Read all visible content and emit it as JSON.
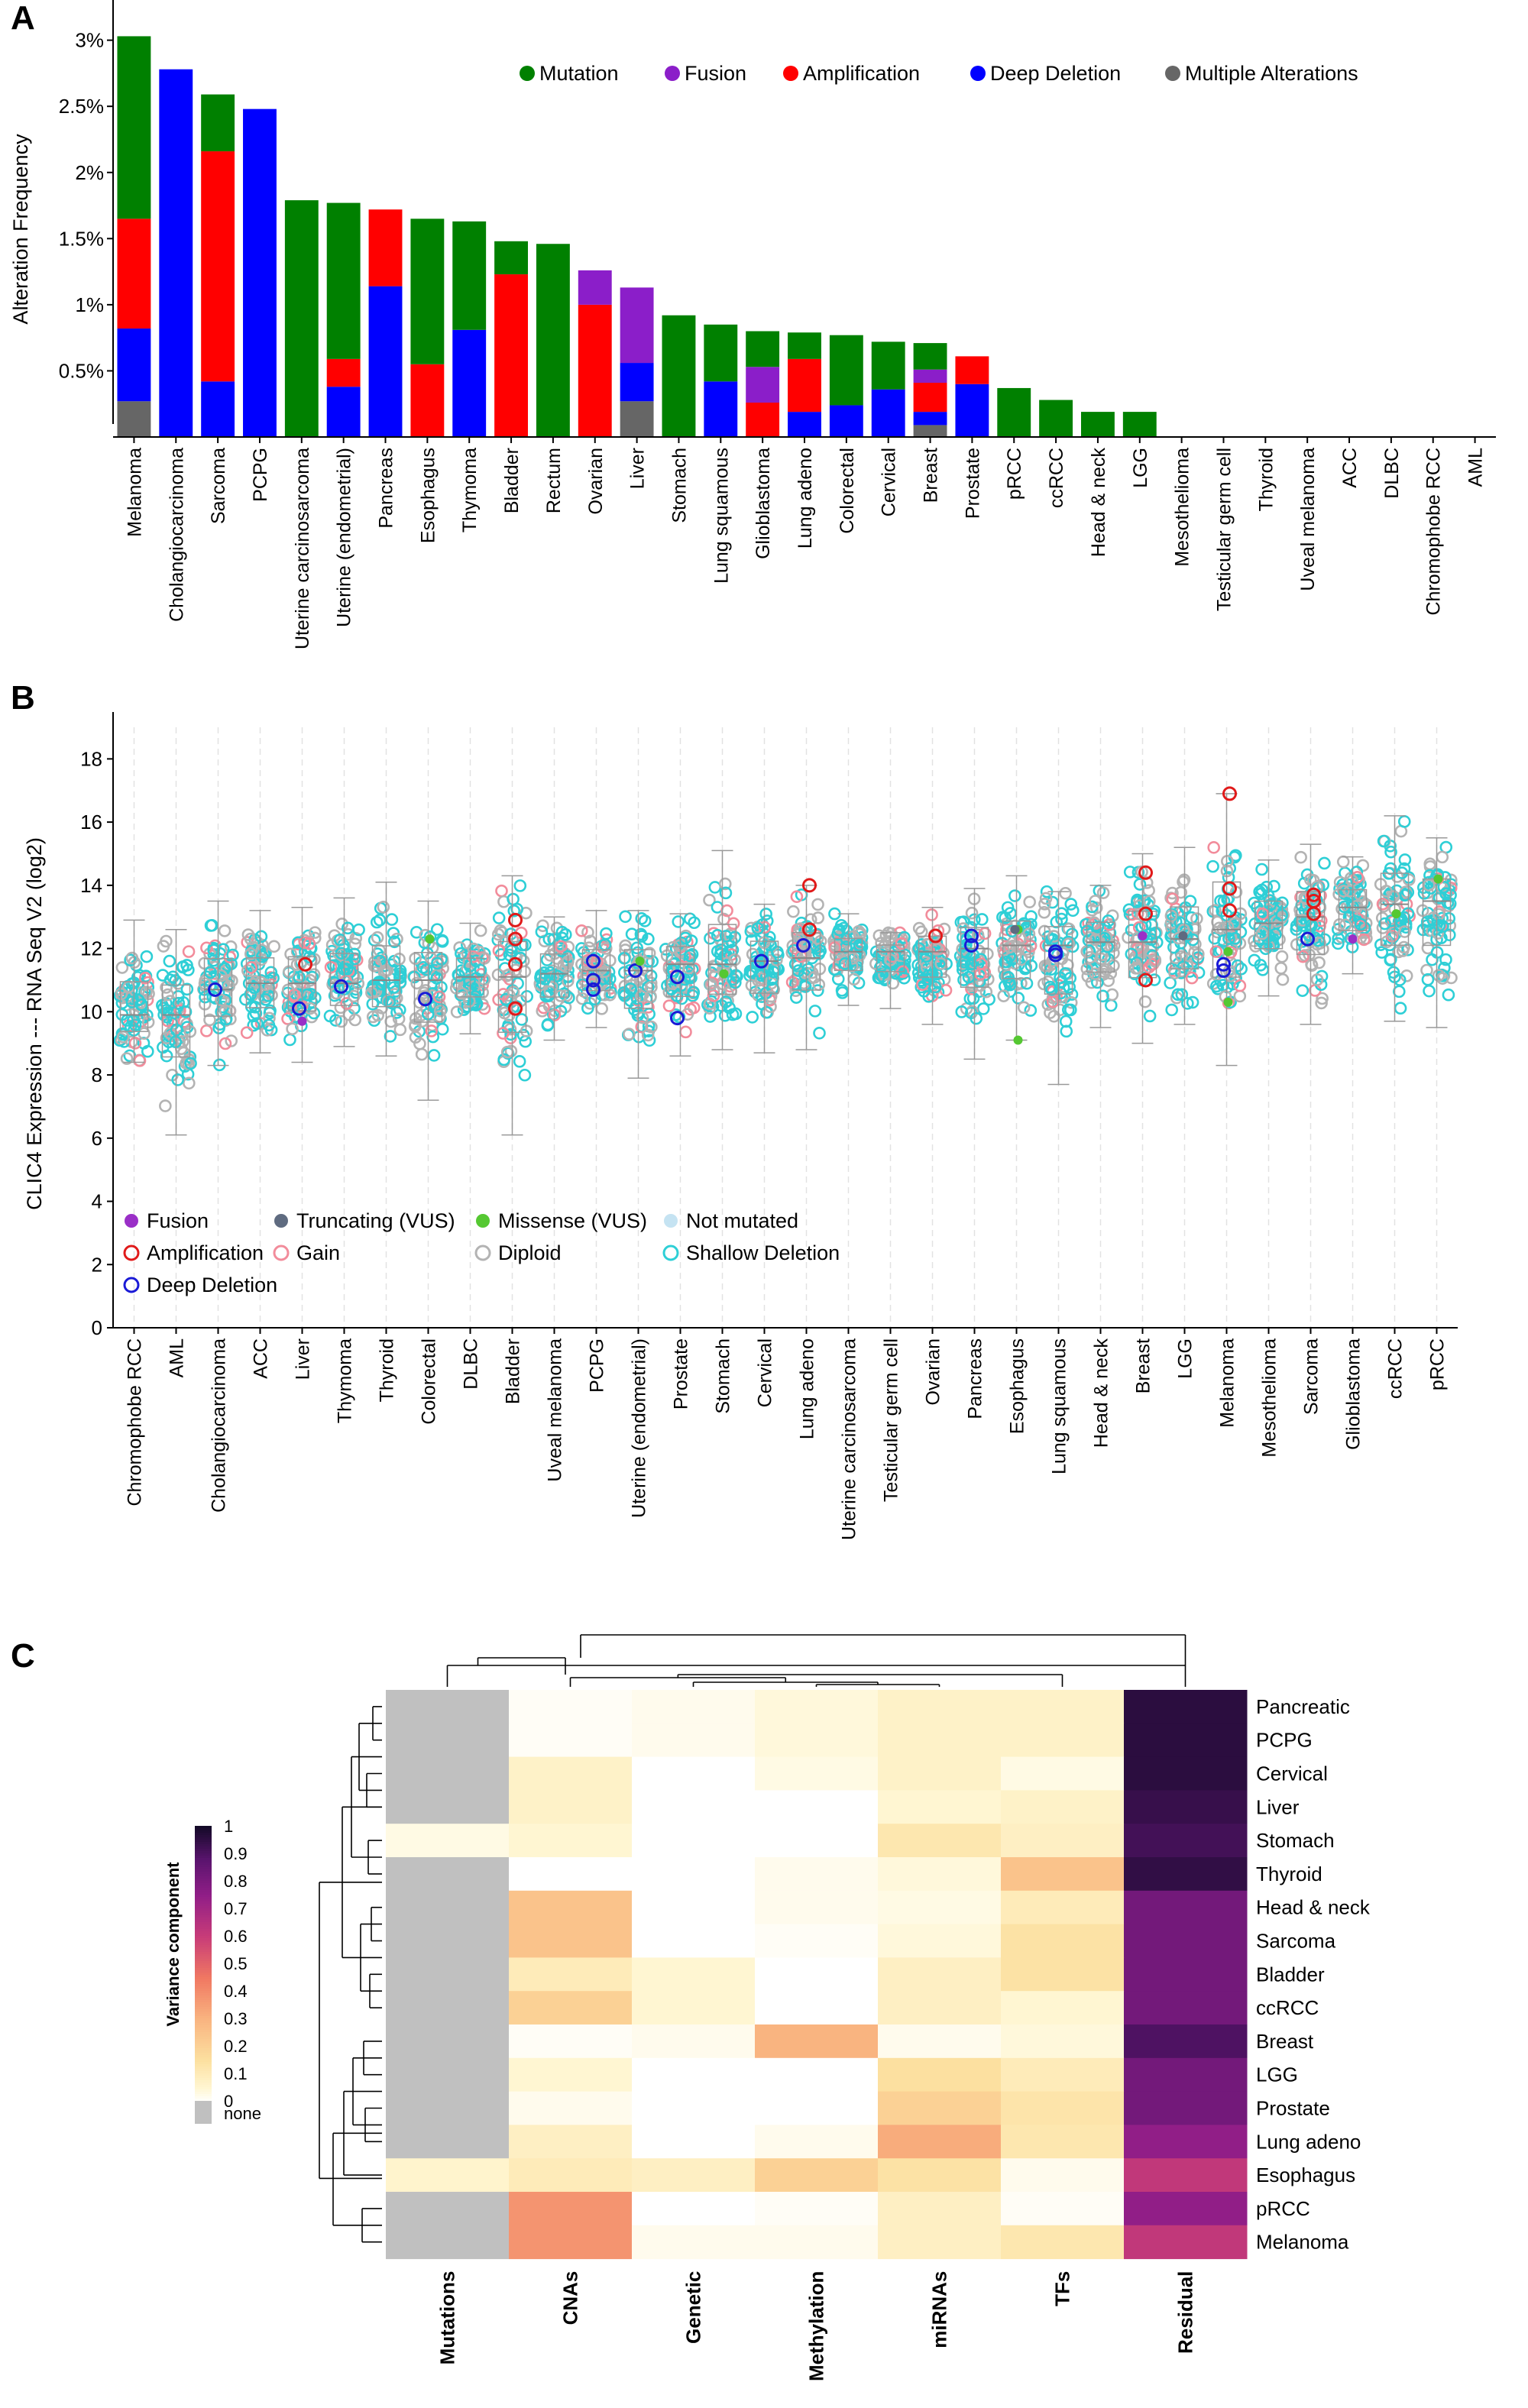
{
  "panels": {
    "a": "A",
    "b": "B",
    "c": "C"
  },
  "chart_data": [
    {
      "type": "bar",
      "panel": "A",
      "ylabel": "Alteration Frequency",
      "ylim": [
        0,
        3.2
      ],
      "yticks": [
        0.5,
        1,
        1.5,
        2,
        2.5,
        3
      ],
      "ytick_labels": [
        "0.5%",
        "1%",
        "1.5%",
        "2%",
        "2.5%",
        "3%"
      ],
      "legend_position": "top-right",
      "legend": [
        {
          "key": "mutation",
          "name": "Mutation",
          "color": "#008000"
        },
        {
          "key": "fusion",
          "name": "Fusion",
          "color": "#8b1ec9"
        },
        {
          "key": "amplification",
          "name": "Amplification",
          "color": "#ff0000"
        },
        {
          "key": "deep_deletion",
          "name": "Deep Deletion",
          "color": "#0000ff"
        },
        {
          "key": "multiple",
          "name": "Multiple Alterations",
          "color": "#666666"
        }
      ],
      "stack_order": [
        "multiple",
        "deep_deletion",
        "amplification",
        "fusion",
        "mutation"
      ],
      "categories": [
        "Melanoma",
        "Cholangiocarcinoma",
        "Sarcoma",
        "PCPG",
        "Uterine carcinosarcoma",
        "Uterine (endometrial)",
        "Pancreas",
        "Esophagus",
        "Thymoma",
        "Bladder",
        "Rectum",
        "Ovarian",
        "Liver",
        "Stomach",
        "Lung squamous",
        "Glioblastoma",
        "Lung adeno",
        "Colorectal",
        "Cervical",
        "Breast",
        "Prostate",
        "pRCC",
        "ccRCC",
        "Head & neck",
        "LGG",
        "Mesothelioma",
        "Testicular germ cell",
        "Thyroid",
        "Uveal melanoma",
        "ACC",
        "DLBC",
        "Chromophobe RCC",
        "AML"
      ],
      "series": [
        {
          "key": "multiple",
          "values": [
            0.27,
            0,
            0,
            0,
            0,
            0,
            0,
            0,
            0,
            0,
            0,
            0,
            0.27,
            0,
            0,
            0,
            0,
            0,
            0,
            0.09,
            0,
            0,
            0,
            0,
            0,
            0,
            0,
            0,
            0,
            0,
            0,
            0,
            0
          ]
        },
        {
          "key": "deep_deletion",
          "values": [
            0.55,
            2.78,
            0.42,
            2.48,
            0,
            0.38,
            1.14,
            0,
            0.81,
            0,
            0,
            0,
            0.29,
            0,
            0.42,
            0,
            0.19,
            0.24,
            0.36,
            0.1,
            0.4,
            0,
            0,
            0,
            0,
            0,
            0,
            0,
            0,
            0,
            0,
            0,
            0
          ]
        },
        {
          "key": "amplification",
          "values": [
            0.83,
            0,
            1.74,
            0,
            0,
            0.21,
            0.58,
            0.55,
            0,
            1.23,
            0,
            1.0,
            0,
            0,
            0,
            0.26,
            0.4,
            0,
            0,
            0.22,
            0.21,
            0,
            0,
            0,
            0,
            0,
            0,
            0,
            0,
            0,
            0,
            0,
            0
          ]
        },
        {
          "key": "fusion",
          "values": [
            0,
            0,
            0,
            0,
            0,
            0,
            0,
            0,
            0,
            0,
            0,
            0.26,
            0.57,
            0,
            0,
            0.27,
            0,
            0,
            0,
            0.1,
            0,
            0,
            0,
            0,
            0,
            0,
            0,
            0,
            0,
            0,
            0,
            0,
            0
          ]
        },
        {
          "key": "mutation",
          "values": [
            1.38,
            0,
            0.43,
            0,
            1.79,
            1.18,
            0,
            1.1,
            0.82,
            0.25,
            1.46,
            0,
            0,
            0.92,
            0.43,
            0.27,
            0.2,
            0.53,
            0.36,
            0.2,
            0,
            0.37,
            0.28,
            0.19,
            0.19,
            0,
            0,
            0,
            0,
            0,
            0,
            0,
            0
          ]
        }
      ]
    },
    {
      "type": "scatter",
      "panel": "B",
      "ylabel": "CLIC4 Expression --- RNA Seq V2 (log2)",
      "ylim": [
        0,
        19
      ],
      "yticks": [
        0,
        2,
        4,
        6,
        8,
        10,
        12,
        14,
        16,
        18
      ],
      "legend_position": "bottom-left",
      "legend": [
        {
          "key": "fusion",
          "name": "Fusion",
          "marker": "filled",
          "color": "#9a2fc7"
        },
        {
          "key": "truncating",
          "name": "Truncating (VUS)",
          "marker": "filled",
          "color": "#5f6b80"
        },
        {
          "key": "missense",
          "name": "Missense (VUS)",
          "marker": "filled",
          "color": "#55c832"
        },
        {
          "key": "not_mutated",
          "name": "Not mutated",
          "marker": "filled",
          "color": "#c5e3f2"
        },
        {
          "key": "amplification",
          "name": "Amplification",
          "marker": "ring",
          "color": "#e01a1a"
        },
        {
          "key": "gain",
          "name": "Gain",
          "marker": "ring",
          "color": "#f28c9b"
        },
        {
          "key": "diploid",
          "name": "Diploid",
          "marker": "ring",
          "color": "#b3b3b3"
        },
        {
          "key": "deep_deletion",
          "name": "Deep Deletion",
          "marker": "ring",
          "color": "#1a1ad6"
        },
        {
          "key": "shallow_deletion",
          "name": "Shallow Deletion",
          "marker": "ring",
          "color": "#2ecfd6"
        }
      ],
      "categories": [
        "Chromophobe RCC",
        "AML",
        "Cholangiocarcinoma",
        "ACC",
        "Liver",
        "Thymoma",
        "Thyroid",
        "Colorectal",
        "DLBC",
        "Bladder",
        "Uveal melanoma",
        "PCPG",
        "Uterine (endometrial)",
        "Prostate",
        "Stomach",
        "Cervical",
        "Lung adeno",
        "Uterine carcinosarcoma",
        "Testicular germ cell",
        "Ovarian",
        "Pancreas",
        "Esophagus",
        "Lung squamous",
        "Head & neck",
        "Breast",
        "LGG",
        "Melanoma",
        "Mesothelioma",
        "Sarcoma",
        "Glioblastoma",
        "ccRCC",
        "pRCC"
      ],
      "median": [
        9.9,
        9.9,
        10.7,
        10.9,
        10.9,
        10.9,
        11.0,
        11.0,
        11.1,
        11.1,
        11.2,
        11.3,
        11.3,
        11.5,
        11.5,
        11.6,
        11.7,
        11.9,
        11.9,
        11.9,
        12.0,
        12.1,
        12.1,
        12.2,
        12.2,
        12.3,
        12.6,
        12.8,
        13.0,
        13.3,
        13.4,
        13.5
      ],
      "min": [
        8.4,
        6.1,
        8.3,
        8.7,
        8.4,
        8.9,
        8.6,
        7.2,
        9.3,
        6.1,
        9.1,
        9.5,
        7.9,
        8.6,
        8.8,
        8.7,
        8.8,
        10.2,
        10.1,
        9.6,
        8.5,
        9.1,
        7.7,
        9.5,
        9.0,
        9.6,
        8.3,
        10.5,
        9.6,
        11.2,
        9.7,
        9.5
      ],
      "max": [
        12.9,
        12.6,
        13.5,
        13.2,
        13.3,
        13.6,
        14.1,
        13.5,
        12.8,
        14.3,
        13.0,
        13.2,
        13.2,
        13.1,
        15.1,
        13.4,
        14.0,
        13.1,
        12.5,
        13.3,
        13.9,
        14.3,
        13.8,
        14.0,
        15.0,
        15.2,
        16.9,
        14.8,
        15.3,
        14.9,
        16.2,
        15.5
      ],
      "highlights": {
        "amplification": [
          [
            4,
            11.5
          ],
          [
            9,
            12.9
          ],
          [
            9,
            12.3
          ],
          [
            9,
            11.5
          ],
          [
            9,
            10.1
          ],
          [
            16,
            14.0
          ],
          [
            16,
            12.6
          ],
          [
            19,
            12.4
          ],
          [
            24,
            14.4
          ],
          [
            24,
            13.1
          ],
          [
            24,
            11.0
          ],
          [
            26,
            16.9
          ],
          [
            26,
            13.9
          ],
          [
            26,
            13.2
          ],
          [
            28,
            13.5
          ],
          [
            28,
            13.1
          ],
          [
            28,
            13.7
          ]
        ],
        "deep_deletion": [
          [
            2,
            10.7
          ],
          [
            4,
            10.1
          ],
          [
            5,
            10.8
          ],
          [
            7,
            10.4
          ],
          [
            11,
            11.6
          ],
          [
            11,
            11.0
          ],
          [
            11,
            10.7
          ],
          [
            12,
            11.3
          ],
          [
            13,
            11.1
          ],
          [
            13,
            9.8
          ],
          [
            15,
            11.6
          ],
          [
            16,
            12.1
          ],
          [
            20,
            12.1
          ],
          [
            20,
            12.4
          ],
          [
            22,
            11.8
          ],
          [
            22,
            11.9
          ],
          [
            26,
            11.3
          ],
          [
            26,
            11.5
          ],
          [
            28,
            12.3
          ]
        ],
        "fusion": [
          [
            4,
            9.7
          ],
          [
            24,
            12.4
          ],
          [
            29,
            12.3
          ]
        ],
        "missense": [
          [
            7,
            12.3
          ],
          [
            12,
            11.6
          ],
          [
            14,
            11.2
          ],
          [
            21,
            9.1
          ],
          [
            21,
            12.6
          ],
          [
            26,
            10.3
          ],
          [
            26,
            11.9
          ],
          [
            30,
            13.1
          ],
          [
            31,
            14.2
          ]
        ],
        "truncating": [
          [
            21,
            12.6
          ],
          [
            25,
            12.4
          ]
        ]
      }
    },
    {
      "type": "heatmap",
      "panel": "C",
      "columns": [
        "Mutations",
        "CNAs",
        "Genetic",
        "Methylation",
        "miRNAs",
        "TFs",
        "Residual"
      ],
      "rows": [
        "Pancreatic",
        "PCPG",
        "Cervical",
        "Liver",
        "Stomach",
        "Thyroid",
        "Head & neck",
        "Sarcoma",
        "Bladder",
        "ccRCC",
        "Breast",
        "LGG",
        "Prostate",
        "Lung adeno",
        "Esophagus",
        "pRCC",
        "Melanoma"
      ],
      "values": [
        [
          null,
          0.01,
          0.02,
          0.04,
          0.07,
          0.07,
          0.96
        ],
        [
          null,
          0.01,
          0.02,
          0.04,
          0.07,
          0.07,
          0.96
        ],
        [
          null,
          0.07,
          0.0,
          0.03,
          0.07,
          0.03,
          0.96
        ],
        [
          null,
          0.07,
          0.0,
          0.0,
          0.05,
          0.07,
          0.94
        ],
        [
          0.03,
          0.05,
          0.0,
          0.0,
          0.12,
          0.08,
          0.92
        ],
        [
          null,
          0.0,
          0.0,
          0.02,
          0.04,
          0.25,
          0.95
        ],
        [
          null,
          0.25,
          0.0,
          0.02,
          0.03,
          0.1,
          0.82
        ],
        [
          null,
          0.25,
          0.0,
          0.01,
          0.04,
          0.14,
          0.82
        ],
        [
          null,
          0.1,
          0.05,
          0.0,
          0.08,
          0.14,
          0.82
        ],
        [
          null,
          0.2,
          0.05,
          0.0,
          0.08,
          0.05,
          0.82
        ],
        [
          null,
          0.01,
          0.02,
          0.3,
          0.02,
          0.04,
          0.9
        ],
        [
          null,
          0.05,
          0.0,
          0.0,
          0.15,
          0.1,
          0.82
        ],
        [
          null,
          0.02,
          0.0,
          0.0,
          0.2,
          0.13,
          0.82
        ],
        [
          null,
          0.08,
          0.0,
          0.02,
          0.32,
          0.12,
          0.75
        ],
        [
          0.06,
          0.1,
          0.08,
          0.2,
          0.14,
          0.02,
          0.62
        ],
        [
          null,
          0.38,
          0.0,
          0.01,
          0.08,
          0.01,
          0.75
        ],
        [
          null,
          0.38,
          0.02,
          0.02,
          0.08,
          0.12,
          0.62
        ]
      ],
      "colorbar": {
        "title": "Variance component",
        "ticks": [
          "1",
          "0.9",
          "0.8",
          "0.7",
          "0.6",
          "0.5",
          "0.4",
          "0.3",
          "0.2",
          "0.1",
          "0",
          "none"
        ]
      }
    }
  ]
}
